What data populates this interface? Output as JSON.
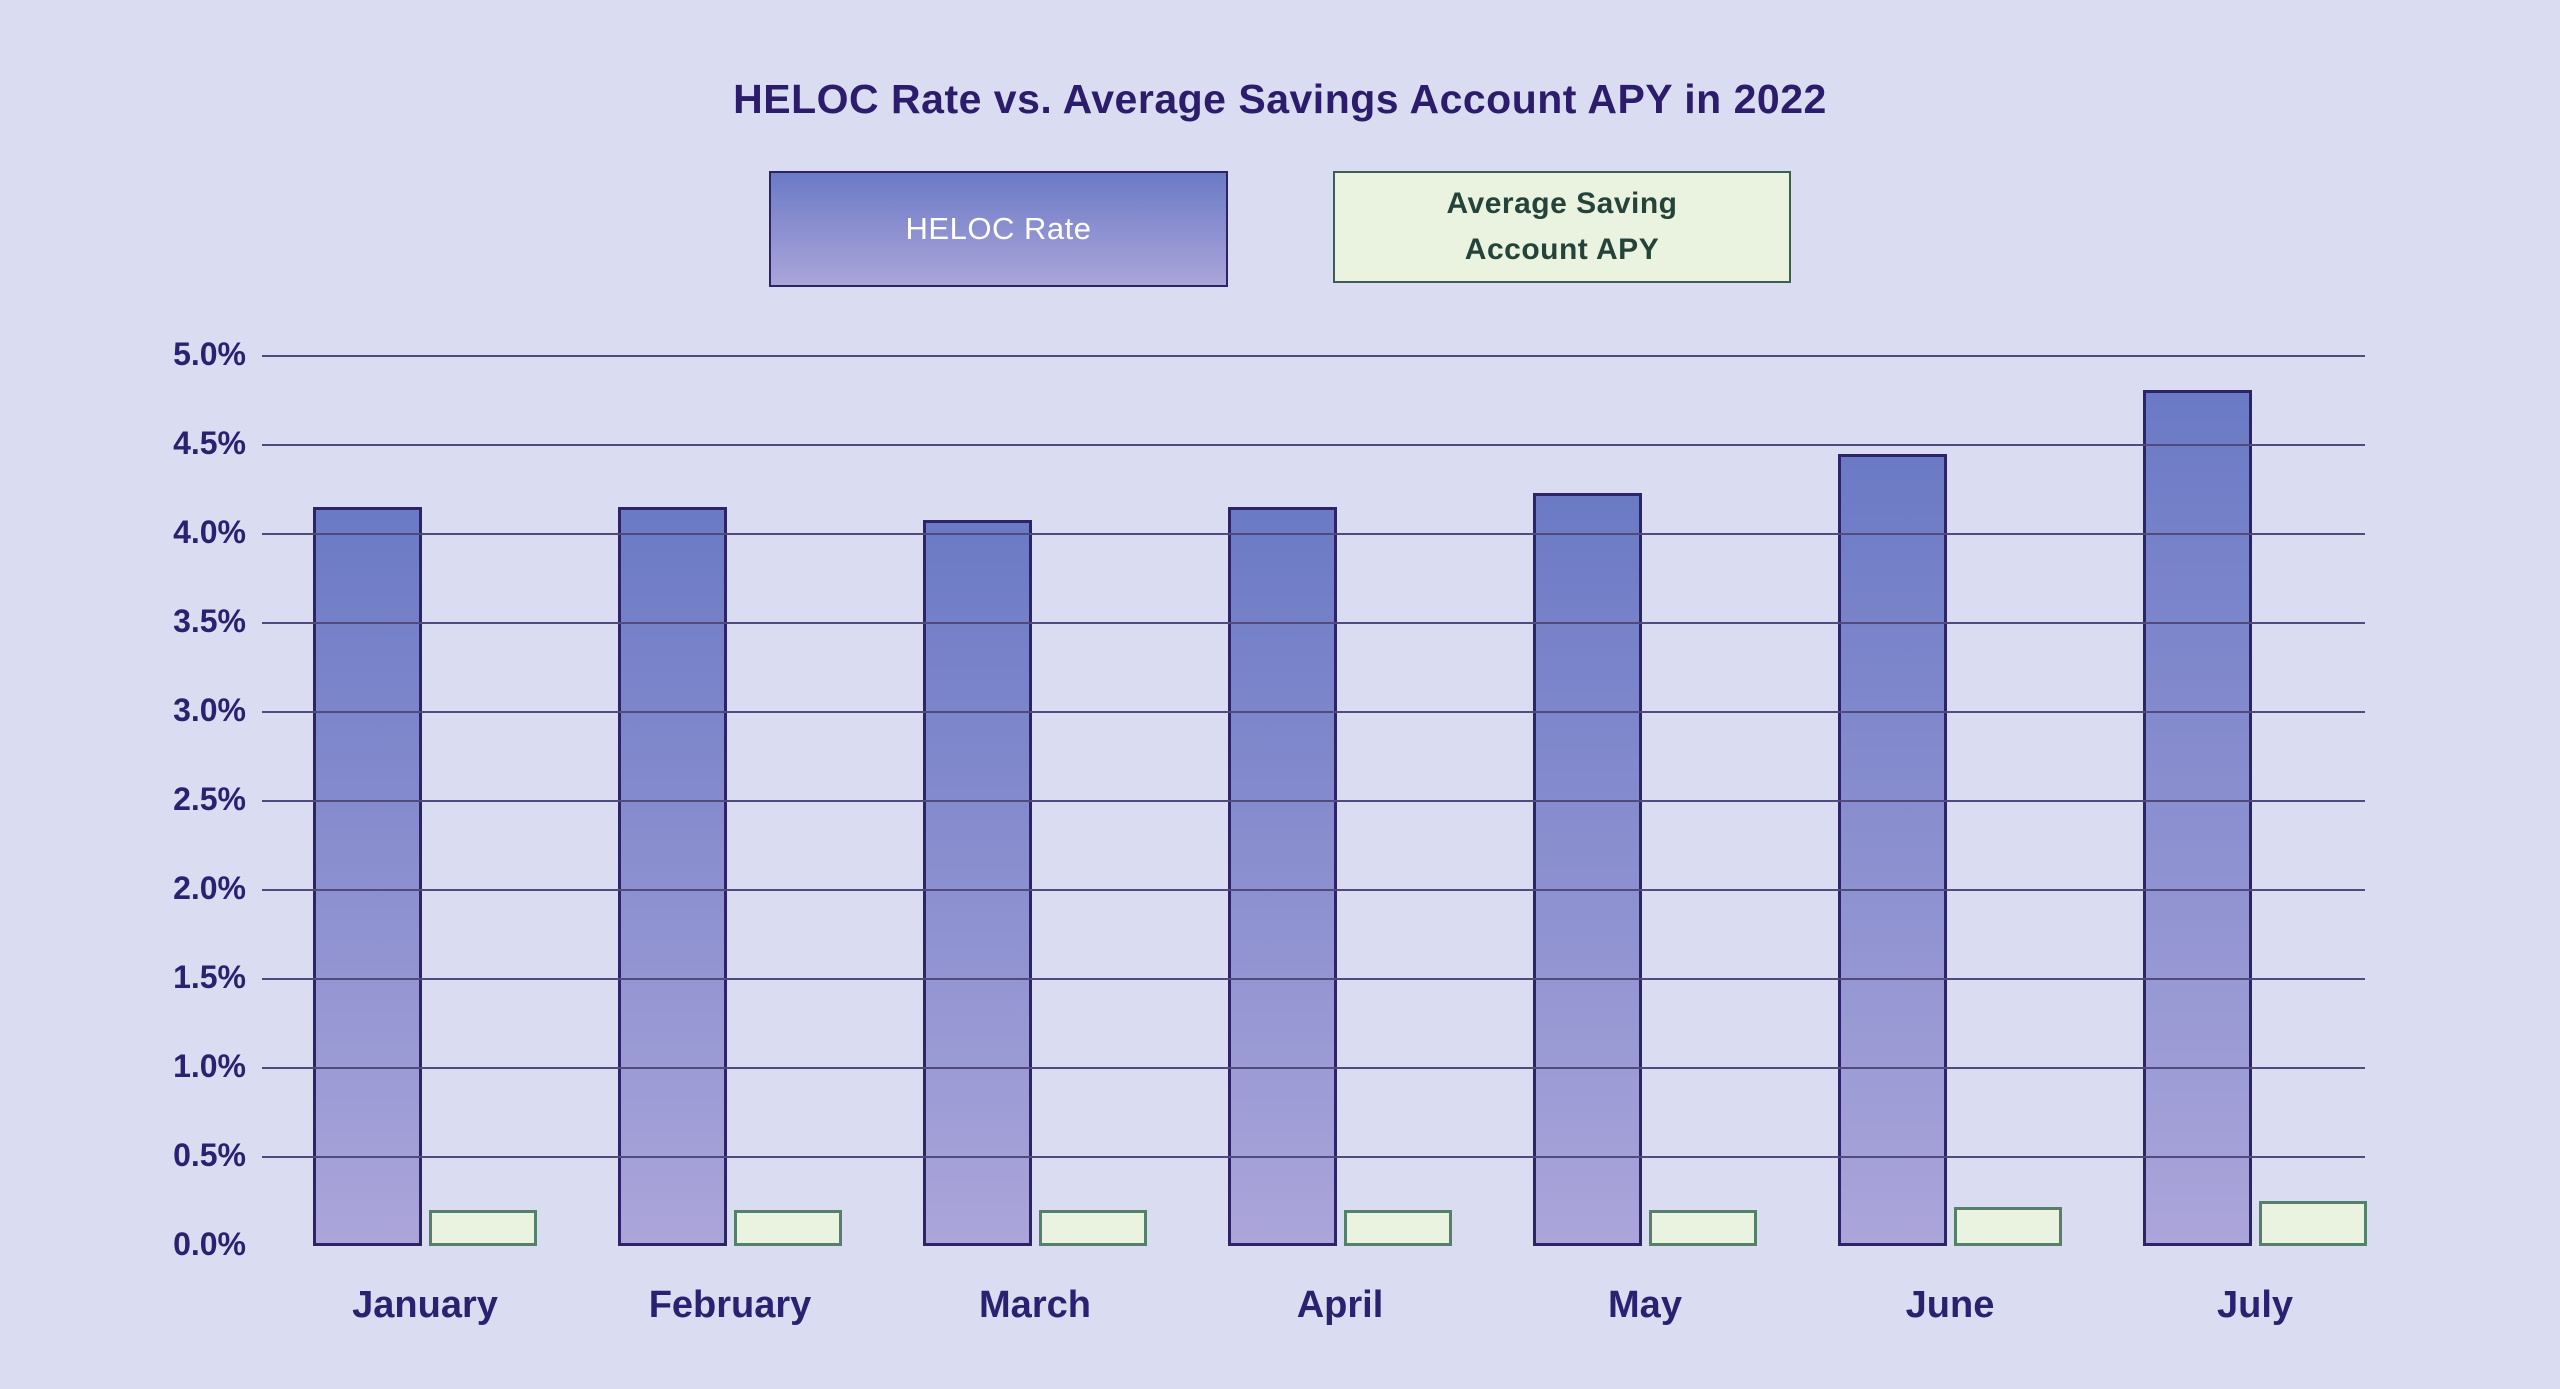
{
  "colors": {
    "background": "#dadcf1",
    "title_text": "#2b1d6b",
    "axis_text": "#2b2171",
    "gridline": "#514b7d",
    "heloc_bar_top": "#6b7ac5",
    "heloc_bar_bottom": "#aba5da",
    "heloc_bar_border": "#2d2368",
    "savings_bar_fill": "#e9f3df",
    "savings_bar_border": "#55806a",
    "legend_heloc_text": "#ffffff",
    "legend_savings_text": "#26433a",
    "legend_savings_border": "#3f5e50"
  },
  "legend": {
    "heloc_label": "HELOC Rate",
    "savings_label_line1": "Average Saving",
    "savings_label_line2": "Account APY"
  },
  "chart_data": {
    "type": "bar",
    "title": "HELOC Rate vs. Average Savings Account APY in 2022",
    "categories": [
      "January",
      "February",
      "March",
      "April",
      "May",
      "June",
      "July"
    ],
    "series": [
      {
        "name": "HELOC Rate",
        "values": [
          4.15,
          4.15,
          4.08,
          4.15,
          4.23,
          4.45,
          4.81
        ],
        "unit": "%"
      },
      {
        "name": "Average Saving Account APY",
        "values": [
          0.2,
          0.2,
          0.2,
          0.2,
          0.2,
          0.22,
          0.25
        ],
        "unit": "%"
      }
    ],
    "xlabel": "",
    "ylabel": "",
    "ylim": [
      0,
      5
    ],
    "ytick_step": 0.5,
    "ytick_labels": [
      "0.0%",
      "0.5%",
      "1.0%",
      "1.5%",
      "2.0%",
      "2.5%",
      "3.0%",
      "3.5%",
      "4.0%",
      "4.5%",
      "5.0%"
    ],
    "grid": true,
    "gridline_at_zero": false,
    "legend_position": "top"
  }
}
